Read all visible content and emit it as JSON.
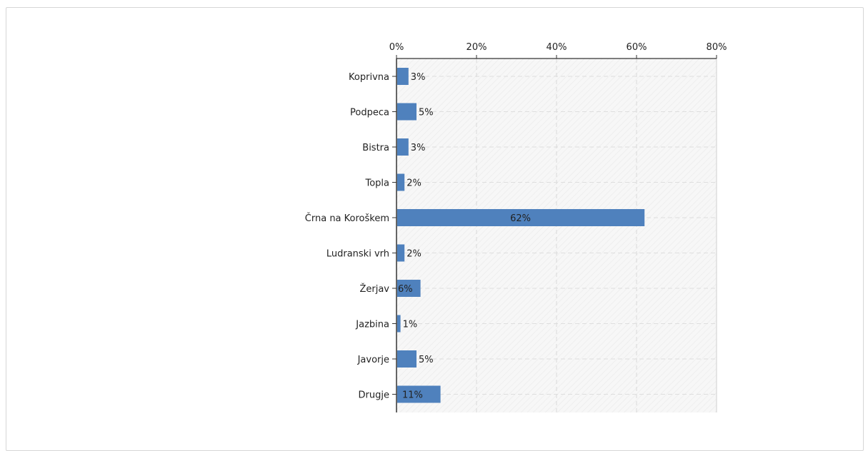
{
  "chart_data": {
    "type": "bar",
    "orientation": "horizontal",
    "categories": [
      "Koprivna",
      "Podpeca",
      "Bistra",
      "Topla",
      "Črna na Koroškem",
      "Ludranski vrh",
      "Žerjav",
      "Jazbina",
      "Javorje",
      "Drugje"
    ],
    "values": [
      3,
      5,
      3,
      2,
      62,
      2,
      6,
      1,
      5,
      11
    ],
    "value_labels": [
      "3%",
      "5%",
      "3%",
      "2%",
      "62%",
      "2%",
      "6%",
      "1%",
      "5%",
      "11%"
    ],
    "xlim": [
      0,
      80
    ],
    "xticks": [
      0,
      20,
      40,
      60,
      80
    ],
    "xtick_labels": [
      "0%",
      "20%",
      "40%",
      "60%",
      "80%"
    ],
    "x_axis_position": "top",
    "grid": true,
    "bar_color": "#4f81bd",
    "plot_background": "#f5f5f5",
    "title": "",
    "xlabel": "",
    "ylabel": ""
  }
}
